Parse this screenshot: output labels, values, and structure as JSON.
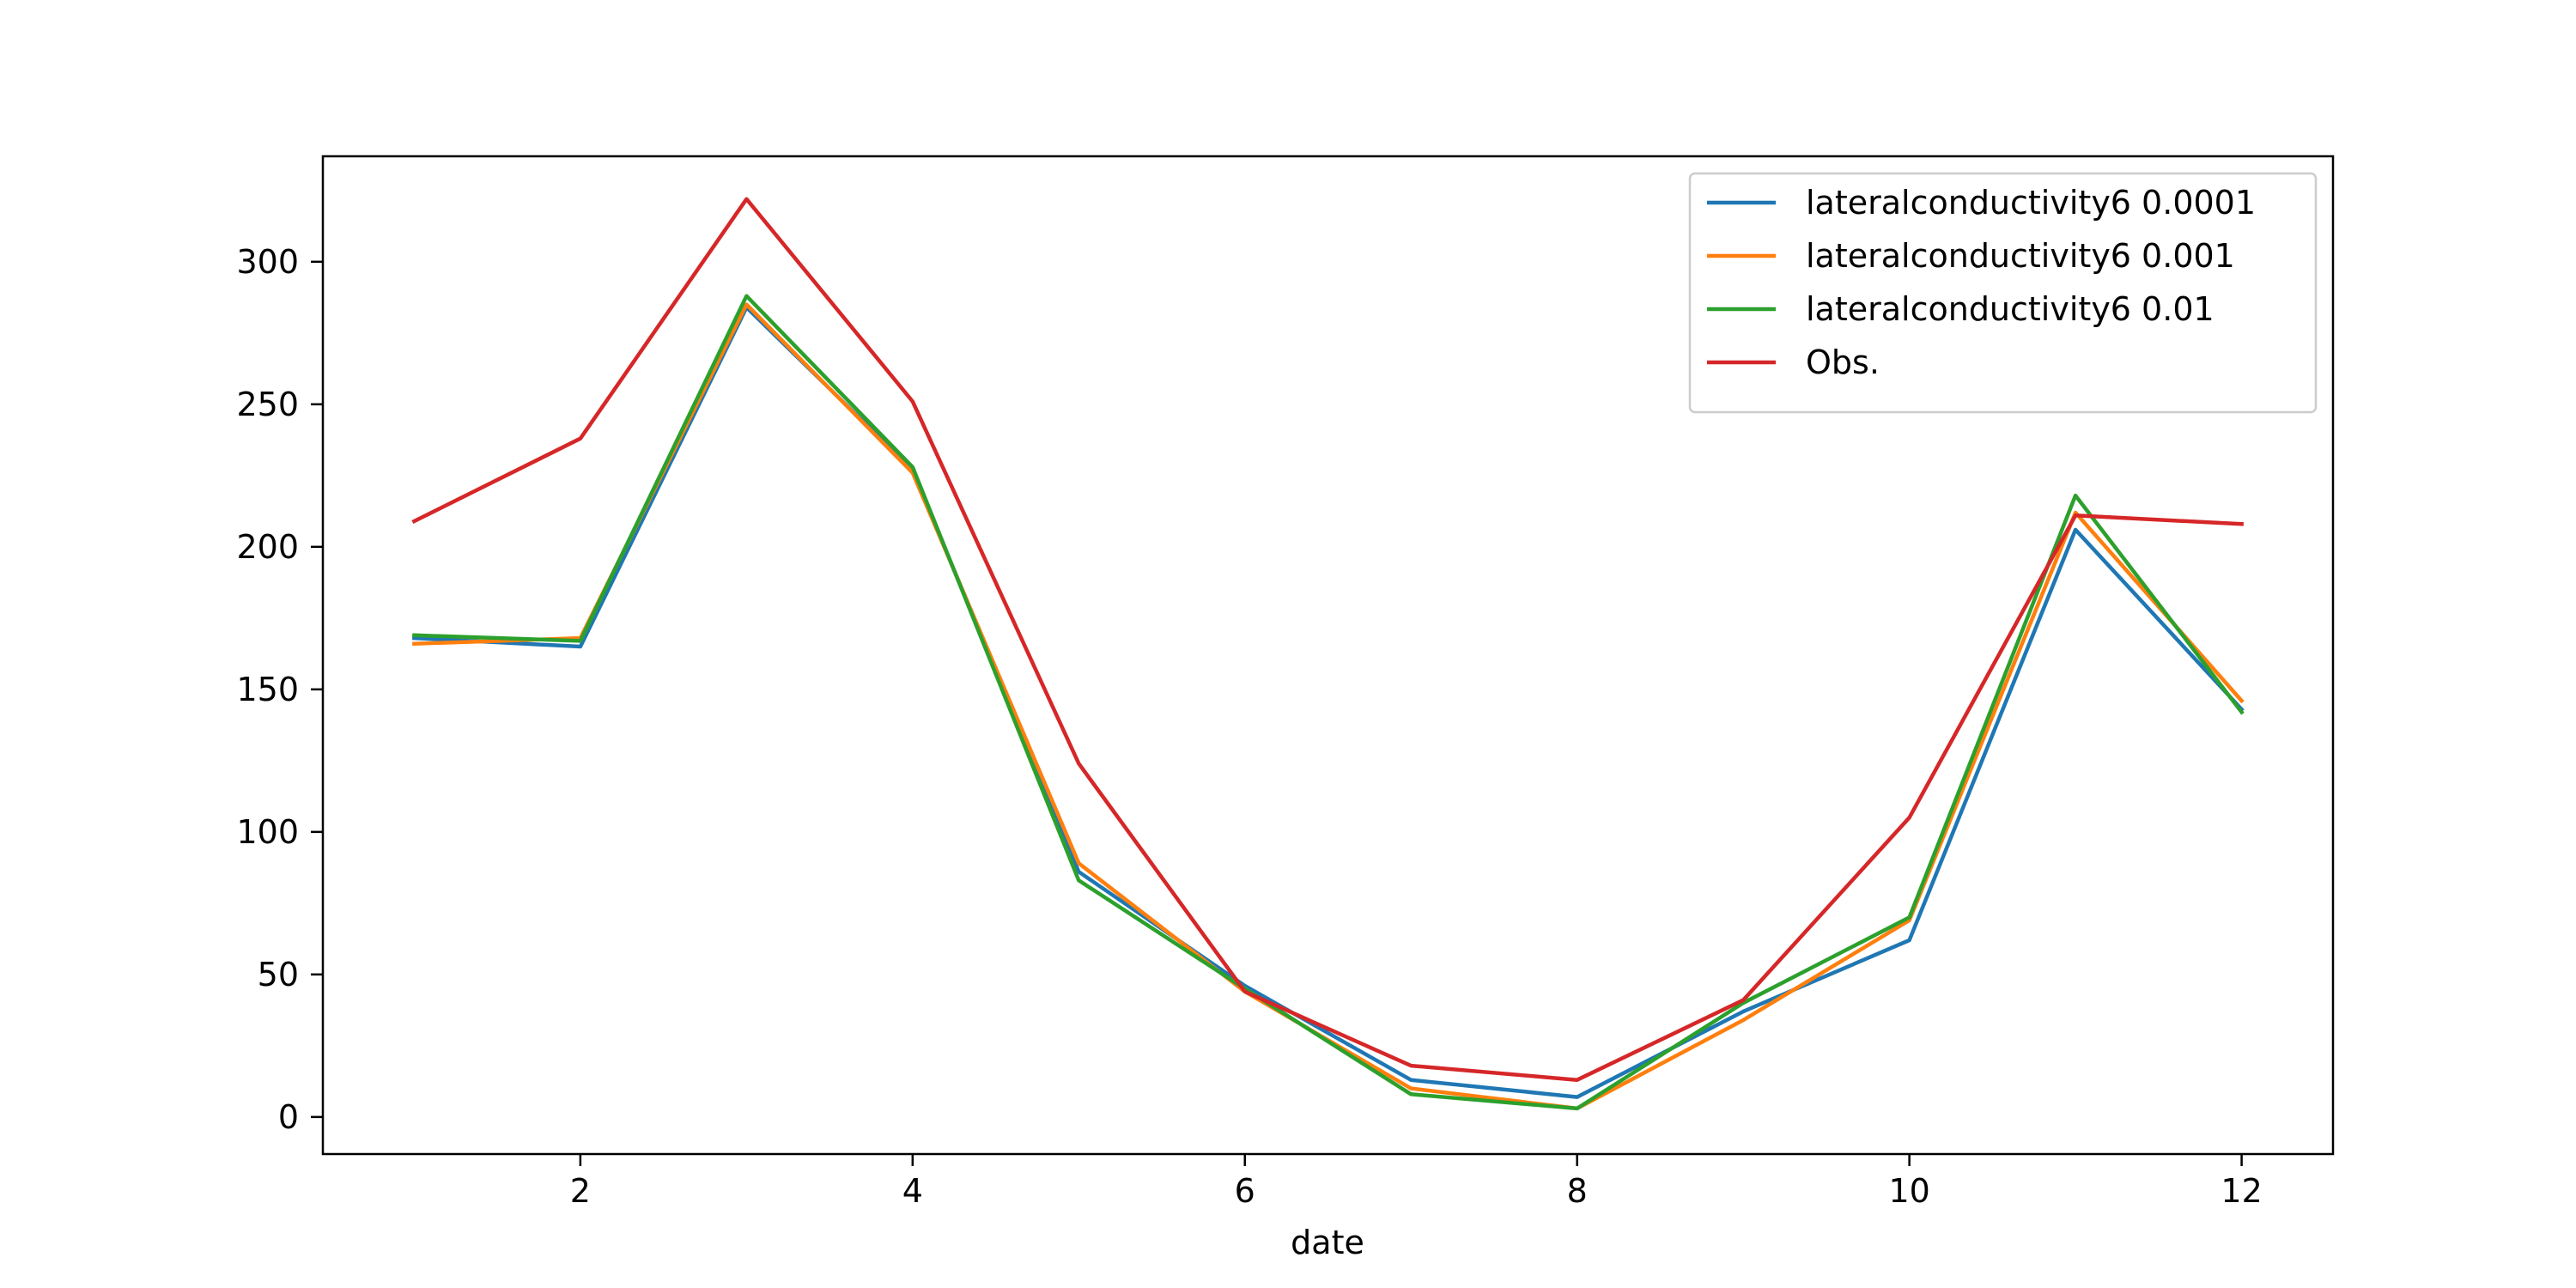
{
  "chart_data": {
    "type": "line",
    "title": "",
    "xlabel": "date",
    "ylabel": "",
    "xlim": [
      0.45,
      12.55
    ],
    "ylim": [
      -13,
      337
    ],
    "xticks": [
      2,
      4,
      6,
      8,
      10,
      12
    ],
    "yticks": [
      0,
      50,
      100,
      150,
      200,
      250,
      300
    ],
    "grid": false,
    "legend_position": "top-right",
    "x": [
      1,
      2,
      3,
      4,
      5,
      6,
      7,
      8,
      9,
      10,
      11,
      12
    ],
    "series": [
      {
        "name": "lateralconductivity6 0.0001",
        "color": "#1f77b4",
        "values": [
          168,
          165,
          284,
          227,
          86,
          46,
          13,
          7,
          37,
          62,
          206,
          143
        ]
      },
      {
        "name": "lateralconductivity6 0.001",
        "color": "#ff7f0e",
        "values": [
          166,
          168,
          285,
          226,
          89,
          44,
          10,
          3,
          34,
          69,
          212,
          146
        ]
      },
      {
        "name": "lateralconductivity6 0.01",
        "color": "#2ca02c",
        "values": [
          169,
          167,
          288,
          228,
          83,
          45,
          8,
          3,
          40,
          70,
          218,
          142
        ]
      },
      {
        "name": "Obs.",
        "color": "#d62728",
        "values": [
          209,
          238,
          322,
          251,
          124,
          44,
          18,
          13,
          41,
          105,
          211,
          208
        ]
      }
    ]
  }
}
